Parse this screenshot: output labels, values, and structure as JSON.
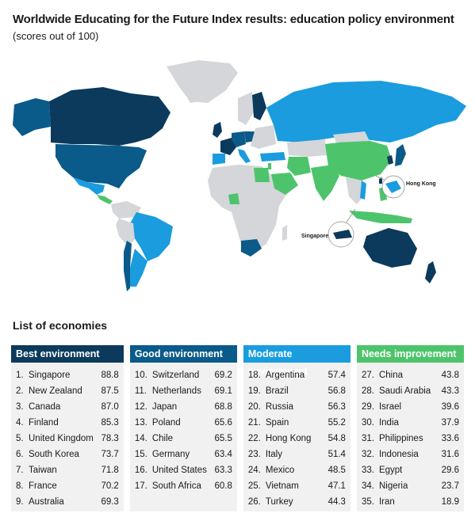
{
  "header": {
    "title": "Worldwide Educating for the Future Index results: education policy environment",
    "subtitle": "(scores out of 100)"
  },
  "colors": {
    "best": "#0b3a5c",
    "good": "#0a5a8a",
    "moderate": "#1a9cdf",
    "needs": "#4dc46b",
    "none": "#d4d6d9"
  },
  "map": {
    "callouts": [
      "Hong Kong",
      "Singapore"
    ]
  },
  "list_title": "List of economies",
  "categories": [
    {
      "label": "Best environment",
      "color": "#0b3a5c",
      "items": [
        {
          "rank": "1.",
          "name": "Singapore",
          "score": "88.8"
        },
        {
          "rank": "2.",
          "name": "New Zealand",
          "score": "87.5"
        },
        {
          "rank": "3.",
          "name": "Canada",
          "score": "87.0"
        },
        {
          "rank": "4.",
          "name": "Finland",
          "score": "85.3"
        },
        {
          "rank": "5.",
          "name": "United Kingdom",
          "score": "78.3"
        },
        {
          "rank": "6.",
          "name": "South Korea",
          "score": "73.7"
        },
        {
          "rank": "7.",
          "name": "Taiwan",
          "score": "71.8"
        },
        {
          "rank": "8.",
          "name": "France",
          "score": "70.2"
        },
        {
          "rank": "9.",
          "name": "Australia",
          "score": "69.3"
        }
      ]
    },
    {
      "label": "Good environment",
      "color": "#0a5a8a",
      "items": [
        {
          "rank": "10.",
          "name": "Switzerland",
          "score": "69.2"
        },
        {
          "rank": "11.",
          "name": "Netherlands",
          "score": "69.1"
        },
        {
          "rank": "12.",
          "name": "Japan",
          "score": "68.8"
        },
        {
          "rank": "13.",
          "name": "Poland",
          "score": "65.6"
        },
        {
          "rank": "14.",
          "name": "Chile",
          "score": "65.5"
        },
        {
          "rank": "15.",
          "name": "Germany",
          "score": "63.4"
        },
        {
          "rank": "16.",
          "name": "United States",
          "score": "63.3"
        },
        {
          "rank": "17.",
          "name": "South Africa",
          "score": "60.8"
        }
      ]
    },
    {
      "label": "Moderate environment",
      "color": "#1a9cdf",
      "items": [
        {
          "rank": "18.",
          "name": "Argentina",
          "score": "57.4"
        },
        {
          "rank": "19.",
          "name": "Brazil",
          "score": "56.8"
        },
        {
          "rank": "20.",
          "name": "Russia",
          "score": "56.3"
        },
        {
          "rank": "21.",
          "name": "Spain",
          "score": "55.2"
        },
        {
          "rank": "22.",
          "name": "Hong Kong",
          "score": "54.8"
        },
        {
          "rank": "23.",
          "name": "Italy",
          "score": "51.4"
        },
        {
          "rank": "24.",
          "name": "Mexico",
          "score": "48.5"
        },
        {
          "rank": "25.",
          "name": "Vietnam",
          "score": "47.1"
        },
        {
          "rank": "26.",
          "name": "Turkey",
          "score": "44.3"
        }
      ]
    },
    {
      "label": "Needs improvement",
      "color": "#4dc46b",
      "items": [
        {
          "rank": "27.",
          "name": "China",
          "score": "43.8"
        },
        {
          "rank": "28.",
          "name": "Saudi Arabia",
          "score": "43.3"
        },
        {
          "rank": "29.",
          "name": "Israel",
          "score": "39.6"
        },
        {
          "rank": "30.",
          "name": "India",
          "score": "37.9"
        },
        {
          "rank": "31.",
          "name": "Philippines",
          "score": "33.6"
        },
        {
          "rank": "32.",
          "name": "Indonesia",
          "score": "31.6"
        },
        {
          "rank": "33.",
          "name": "Egypt",
          "score": "29.6"
        },
        {
          "rank": "34.",
          "name": "Nigeria",
          "score": "23.7"
        },
        {
          "rank": "35.",
          "name": "Iran",
          "score": "18.9"
        }
      ]
    }
  ]
}
